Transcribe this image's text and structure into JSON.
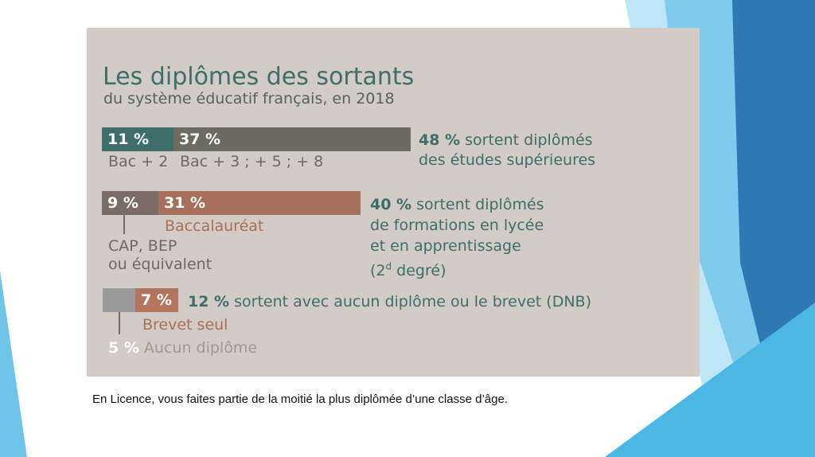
{
  "slide": {
    "caption": "En Licence, vous faites partie de la moitié la plus diplômée d’une classe d’âge."
  },
  "chart_data": {
    "type": "bar",
    "title": "Les diplômes des sortants",
    "subtitle": "du système éducatif français, en 2018",
    "groups": [
      {
        "total": 48,
        "total_label": "48 %",
        "description_lines": [
          "sortent diplômés",
          "des études supérieures"
        ],
        "segments": [
          {
            "value": 11,
            "label": "11 %",
            "category": "Bac + 2",
            "color": "#3e6e6a"
          },
          {
            "value": 37,
            "label": "37 %",
            "category": "Bac + 3 ; + 5 ; + 8",
            "color": "#6b6b61"
          }
        ]
      },
      {
        "total": 40,
        "total_label": "40 %",
        "description_lines": [
          "sortent diplômés",
          "de formations en lycée",
          "et en apprentissage",
          "(2",
          "d",
          " degré)"
        ],
        "segments": [
          {
            "value": 9,
            "label": "9 %",
            "category": "CAP, BEP\nou équivalent",
            "category_lines": [
              "CAP, BEP",
              "ou équivalent"
            ],
            "color": "#7a6c64"
          },
          {
            "value": 31,
            "label": "31 %",
            "category": "Baccalauréat",
            "color": "#a8705a"
          }
        ]
      },
      {
        "total": 12,
        "total_label": "12 %",
        "description_lines": [
          "sortent avec aucun diplôme ou le brevet (DNB)"
        ],
        "segments": [
          {
            "value": 5,
            "label": "5 %",
            "category": "Aucun diplôme",
            "color": "#9a9a9a"
          },
          {
            "value": 7,
            "label": "7 %",
            "category": "Brevet seul",
            "color": "#b5745e"
          }
        ]
      }
    ]
  },
  "colors": {
    "panel": "#d3cbc6",
    "heading": "#3d6e6a",
    "deco_blue_light": "#8fd3f0",
    "deco_blue_mid": "#3fb3e3",
    "deco_blue_dark": "#2e6fa8"
  }
}
